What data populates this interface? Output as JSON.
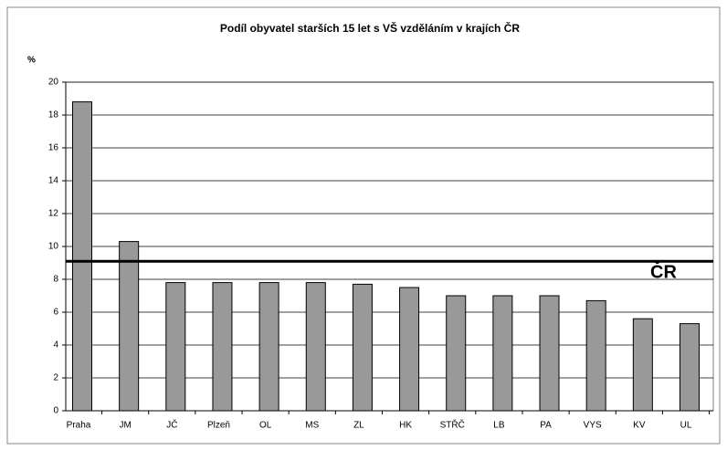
{
  "chart_data": {
    "type": "bar",
    "title": "Podíl obyvatel starších 15 let s VŠ vzděláním v krajích ČR",
    "y_label": "%",
    "categories": [
      "Praha",
      "JM",
      "JČ",
      "Plzeň",
      "OL",
      "MS",
      "ZL",
      "HK",
      "STŘČ",
      "LB",
      "PA",
      "VYS",
      "KV",
      "UL"
    ],
    "values": [
      18.8,
      10.3,
      7.8,
      7.8,
      7.8,
      7.8,
      7.7,
      7.5,
      7.0,
      7.0,
      7.0,
      6.7,
      5.6,
      5.3
    ],
    "color": "#999999",
    "ylim": [
      0,
      20
    ],
    "yticks": [
      0,
      2,
      4,
      6,
      8,
      10,
      12,
      14,
      16,
      18,
      20
    ],
    "grid": true,
    "reference_line": {
      "label": "ČR",
      "value": 9.1
    }
  }
}
